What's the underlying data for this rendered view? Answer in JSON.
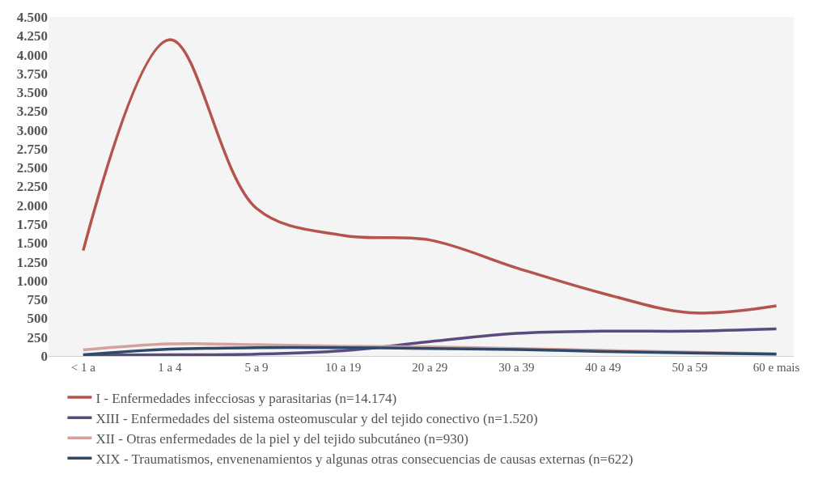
{
  "chart_data": {
    "type": "line",
    "categories": [
      "< 1 a",
      "1 a 4",
      "5 a 9",
      "10 a 19",
      "20 a 29",
      "30 a 39",
      "40 a 49",
      "50 a 59",
      "60 e mais"
    ],
    "series": [
      {
        "name": "I - Enfermedades infecciosas y parasitarias (n=14.174)",
        "color": "#b5534d",
        "values": [
          1400,
          4200,
          1960,
          1600,
          1540,
          1170,
          830,
          575,
          666
        ]
      },
      {
        "name": "XIII - Enfermedades del sistema osteomuscular y del tejido conectivo (n=1.520)",
        "color": "#5b4a80",
        "values": [
          10,
          15,
          25,
          70,
          190,
          300,
          330,
          330,
          360
        ]
      },
      {
        "name": "XII - Otras enfermedades de la piel y del tejido subcutáneo (n=930)",
        "color": "#d4a19c",
        "values": [
          80,
          160,
          150,
          130,
          120,
          100,
          75,
          50,
          30
        ]
      },
      {
        "name": "XIX - Traumatismos, envenenamientos y algunas otras consecuencias de causas externas (n=622)",
        "color": "#2e4a6b",
        "values": [
          15,
          90,
          110,
          110,
          100,
          85,
          60,
          40,
          25
        ]
      }
    ],
    "ylim": [
      0,
      4500
    ],
    "yticks": [
      {
        "value": 0,
        "label": "0"
      },
      {
        "value": 250,
        "label": "250"
      },
      {
        "value": 500,
        "label": "500"
      },
      {
        "value": 750,
        "label": "750"
      },
      {
        "value": 1000,
        "label": "1.000"
      },
      {
        "value": 1250,
        "label": "1.250"
      },
      {
        "value": 1500,
        "label": "1.500"
      },
      {
        "value": 1750,
        "label": "1.750"
      },
      {
        "value": 2000,
        "label": "2.000"
      },
      {
        "value": 2250,
        "label": "2.250"
      },
      {
        "value": 2500,
        "label": "2.500"
      },
      {
        "value": 2750,
        "label": "2.750"
      },
      {
        "value": 3000,
        "label": "3.000"
      },
      {
        "value": 3250,
        "label": "3.250"
      },
      {
        "value": 3500,
        "label": "3.500"
      },
      {
        "value": 3750,
        "label": "3.750"
      },
      {
        "value": 4000,
        "label": "4.000"
      },
      {
        "value": 4250,
        "label": "4.250"
      },
      {
        "value": 4500,
        "label": "4.500"
      }
    ],
    "grid": false,
    "legend": "bottom",
    "marker": "none",
    "line_style": "solid"
  }
}
